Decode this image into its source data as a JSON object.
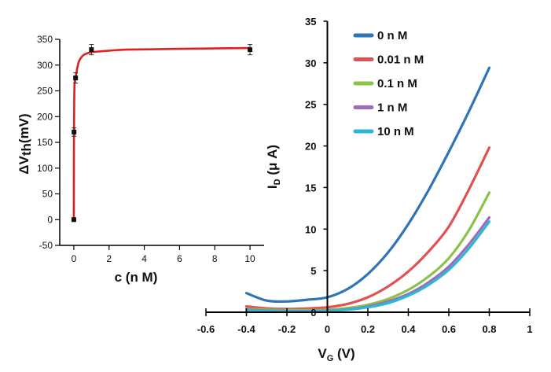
{
  "chart_data": [
    {
      "type": "line",
      "xlabel": "V",
      "xlabel_sub": "G",
      "xlabel_unit": " (V)",
      "ylabel": "I",
      "ylabel_sub": "D",
      "ylabel_unit": " (μ A)",
      "xlim": [
        -0.6,
        1.0
      ],
      "ylim": [
        0,
        35
      ],
      "x_ticks": [
        "-0.6",
        "-0.4",
        "-0.2",
        "0",
        "0.2",
        "0.4",
        "0.6",
        "0.8",
        "1"
      ],
      "y_ticks": [
        "0",
        "5",
        "10",
        "15",
        "20",
        "25",
        "30",
        "35"
      ],
      "legend_position": "top-right",
      "series": [
        {
          "name": "0 n M",
          "color": "#2e75b6",
          "x": [
            -0.4,
            -0.3,
            -0.2,
            -0.1,
            0.0,
            0.1,
            0.2,
            0.3,
            0.4,
            0.5,
            0.6,
            0.7,
            0.8
          ],
          "y": [
            2.3,
            1.4,
            1.3,
            1.5,
            1.8,
            2.8,
            4.6,
            7.2,
            10.6,
            14.7,
            19.3,
            24.2,
            29.4
          ]
        },
        {
          "name": "0.01 n M",
          "color": "#e05252",
          "x": [
            -0.4,
            -0.3,
            -0.2,
            -0.1,
            0.0,
            0.1,
            0.2,
            0.3,
            0.4,
            0.5,
            0.6,
            0.7,
            0.8
          ],
          "y": [
            0.7,
            0.45,
            0.4,
            0.45,
            0.6,
            1.0,
            1.8,
            3.1,
            4.9,
            7.3,
            10.3,
            14.8,
            19.8
          ]
        },
        {
          "name": "0.1 n M",
          "color": "#8bc34a",
          "x": [
            -0.4,
            -0.3,
            -0.2,
            -0.1,
            0.0,
            0.1,
            0.2,
            0.3,
            0.4,
            0.5,
            0.6,
            0.7,
            0.8
          ],
          "y": [
            0.4,
            0.3,
            0.25,
            0.25,
            0.3,
            0.5,
            0.9,
            1.6,
            2.7,
            4.3,
            6.5,
            9.9,
            14.4
          ]
        },
        {
          "name": "1 n M",
          "color": "#9b6dbf",
          "x": [
            -0.4,
            -0.3,
            -0.2,
            -0.1,
            0.0,
            0.1,
            0.2,
            0.3,
            0.4,
            0.5,
            0.6,
            0.7,
            0.8
          ],
          "y": [
            0.3,
            0.2,
            0.15,
            0.15,
            0.2,
            0.35,
            0.7,
            1.3,
            2.2,
            3.6,
            5.5,
            8.2,
            11.4
          ]
        },
        {
          "name": "10 n M",
          "color": "#2bb8d1",
          "x": [
            -0.4,
            -0.3,
            -0.2,
            -0.1,
            0.0,
            0.1,
            0.2,
            0.3,
            0.4,
            0.5,
            0.6,
            0.7,
            0.8
          ],
          "y": [
            0.2,
            0.15,
            0.1,
            0.1,
            0.15,
            0.3,
            0.6,
            1.1,
            2.0,
            3.3,
            5.1,
            7.7,
            10.9
          ]
        }
      ]
    },
    {
      "type": "scatter",
      "xlabel": "c (n M)",
      "ylabel": "ΔV",
      "ylabel_sub": "th",
      "ylabel_unit": "(mV)",
      "xlim": [
        -0.8,
        10.8
      ],
      "ylim": [
        -50,
        350
      ],
      "x_ticks": [
        "0",
        "2",
        "4",
        "6",
        "8",
        "10"
      ],
      "y_ticks": [
        "-50",
        "0",
        "50",
        "100",
        "150",
        "200",
        "250",
        "300",
        "350"
      ],
      "points": {
        "x": [
          0,
          0.01,
          0.1,
          1,
          10
        ],
        "y": [
          0,
          170,
          275,
          330,
          330
        ],
        "error": [
          0,
          8,
          10,
          10,
          10
        ]
      },
      "fit": {
        "color": "#e02020",
        "x": [
          0,
          0.005,
          0.01,
          0.02,
          0.04,
          0.07,
          0.1,
          0.15,
          0.2,
          0.3,
          0.5,
          0.7,
          1,
          2,
          3,
          5,
          7,
          10
        ],
        "y": [
          0,
          115,
          170,
          225,
          262,
          273,
          276,
          285,
          295,
          308,
          318,
          322,
          325,
          328,
          330,
          331,
          332,
          333
        ]
      }
    }
  ]
}
